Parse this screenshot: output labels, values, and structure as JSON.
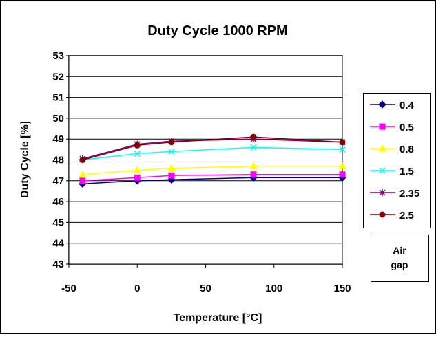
{
  "chart_data": {
    "type": "line",
    "title": "Duty Cycle 1000 RPM",
    "xlabel": "Temperature [°C]",
    "ylabel": "Duty Cycle [%]",
    "xlim": [
      -50,
      150
    ],
    "ylim": [
      43,
      53
    ],
    "xticks": [
      -50,
      0,
      50,
      100,
      150
    ],
    "yticks": [
      43,
      44,
      45,
      46,
      47,
      48,
      49,
      50,
      51,
      52,
      53
    ],
    "x": [
      -40,
      0,
      25,
      85,
      150
    ],
    "grid": "horizontal",
    "legend_position": "right",
    "legend_note": "Air gap",
    "series": [
      {
        "name": "0.4",
        "values": [
          46.85,
          47.0,
          47.05,
          47.15,
          47.15
        ],
        "color": "#000080",
        "marker": "diamond"
      },
      {
        "name": "0.5",
        "values": [
          47.0,
          47.15,
          47.25,
          47.3,
          47.3
        ],
        "color": "#FF00FF",
        "marker": "square"
      },
      {
        "name": "0.8",
        "values": [
          47.3,
          47.5,
          47.6,
          47.7,
          47.7
        ],
        "color": "#FFFF00",
        "marker": "triangle"
      },
      {
        "name": "1.5",
        "values": [
          48.0,
          48.3,
          48.4,
          48.6,
          48.5
        ],
        "color": "#00FFFF",
        "marker": "x"
      },
      {
        "name": "2.35",
        "values": [
          48.05,
          48.75,
          48.9,
          49.0,
          48.85
        ],
        "color": "#800080",
        "marker": "star"
      },
      {
        "name": "2.5",
        "values": [
          48.0,
          48.7,
          48.85,
          49.1,
          48.85
        ],
        "color": "#800000",
        "marker": "circle"
      }
    ]
  }
}
